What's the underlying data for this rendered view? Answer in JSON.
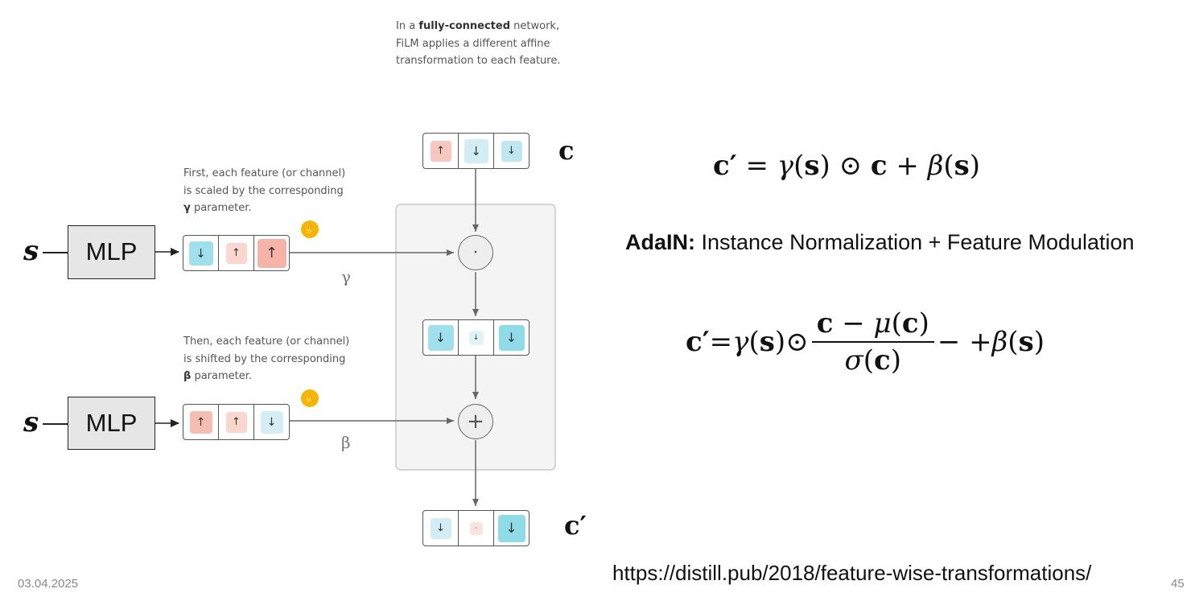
{
  "top_note": {
    "prefix": "In a ",
    "bold": "fully-connected",
    "suffix": " network,",
    "line2": "FiLM applies a different affine",
    "line3": "transformation to each feature."
  },
  "note_gamma": {
    "line1": "First, each feature (or channel)",
    "line2": "is scaled by the corresponding",
    "line3_sym": "γ",
    "line3_rest": " parameter."
  },
  "note_beta": {
    "line1": "Then, each feature (or channel)",
    "line2": "is shifted by the corresponding",
    "line3_sym": "β",
    "line3_rest": " parameter."
  },
  "input_symbol": "s",
  "mlp_label": "MLP",
  "gamma_label": "γ",
  "beta_label": "β",
  "op_mult": "·",
  "op_add": "+",
  "c_label": "c",
  "c_prime_label": "c′",
  "vectors": {
    "c": [
      {
        "dir": "↑",
        "color": "#f8c7bf",
        "size": 26
      },
      {
        "dir": "↓",
        "color": "#d2eef4",
        "size": 30
      },
      {
        "dir": "↓",
        "color": "#bfe7f1",
        "size": 26
      }
    ],
    "gamma": [
      {
        "dir": "↓",
        "color": "#9fe0ec",
        "size": 30
      },
      {
        "dir": "↑",
        "color": "#fbd7d0",
        "size": 26
      },
      {
        "dir": "↑",
        "color": "#f6b3a8",
        "size": 36
      }
    ],
    "mid": [
      {
        "dir": "↓",
        "color": "#9fe0ec",
        "size": 32
      },
      {
        "dir": "↓",
        "color": "#dff3f6",
        "size": 18
      },
      {
        "dir": "↓",
        "color": "#8fdbe8",
        "size": 32
      }
    ],
    "beta": [
      {
        "dir": "↑",
        "color": "#f6beb3",
        "size": 28
      },
      {
        "dir": "↑",
        "color": "#fbd6cf",
        "size": 26
      },
      {
        "dir": "↓",
        "color": "#d5eef5",
        "size": 28
      }
    ],
    "out": [
      {
        "dir": "↓",
        "color": "#d2eef4",
        "size": 26
      },
      {
        "dir": "·",
        "color": "#fde3de",
        "size": 16
      },
      {
        "dir": "↓",
        "color": "#8fdbe8",
        "size": 34
      }
    ]
  },
  "formula1": {
    "lhs": "c′",
    "eq": " = ",
    "gamma": "γ",
    "s": "s",
    "odot": " ⊙ ",
    "c": "c",
    "plus": " + ",
    "beta": "β"
  },
  "adain": {
    "bold": "AdaIN:",
    "text": " Instance Normalization + Feature Modulation"
  },
  "formula2": {
    "lhs": "c′",
    "eq": " = ",
    "gamma": "γ",
    "s": "s",
    "odot": " ⊙ ",
    "num_c": "c",
    "minus": " − ",
    "mu": "μ",
    "sigma": "σ",
    "tail": " − +",
    "beta": "β"
  },
  "footer": {
    "date": "03.04.2025",
    "url": "https://distill.pub/2018/feature-wise-transformations/",
    "page": "45"
  }
}
